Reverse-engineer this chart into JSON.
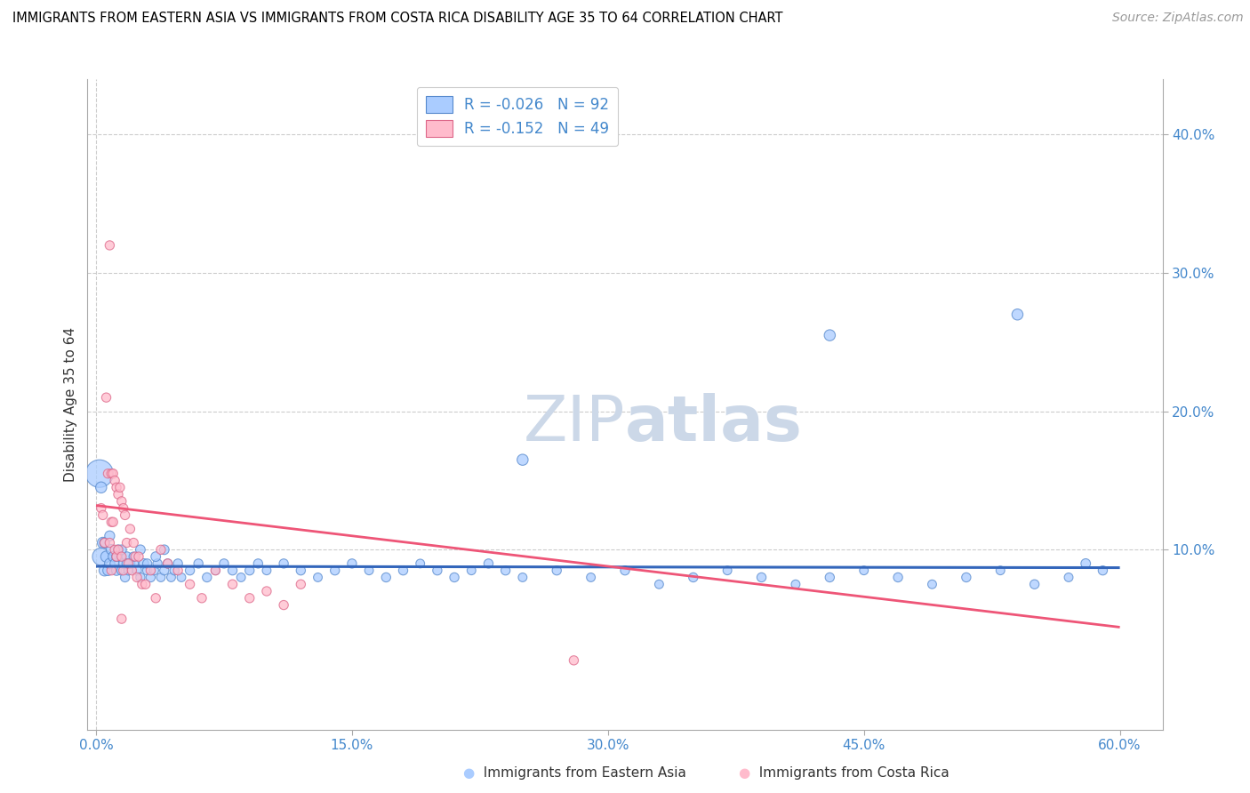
{
  "title": "IMMIGRANTS FROM EASTERN ASIA VS IMMIGRANTS FROM COSTA RICA DISABILITY AGE 35 TO 64 CORRELATION CHART",
  "source": "Source: ZipAtlas.com",
  "xlabel_blue": "Immigrants from Eastern Asia",
  "xlabel_pink": "Immigrants from Costa Rica",
  "ylabel": "Disability Age 35 to 64",
  "blue_R": -0.026,
  "blue_N": 92,
  "pink_R": -0.152,
  "pink_N": 49,
  "xlim": [
    -0.005,
    0.625
  ],
  "ylim": [
    -0.03,
    0.44
  ],
  "ytick_vals": [
    0.1,
    0.2,
    0.3,
    0.4
  ],
  "xtick_vals": [
    0.0,
    0.15,
    0.3,
    0.45,
    0.6
  ],
  "grid_color": "#cccccc",
  "blue_color": "#aaccff",
  "blue_edge_color": "#5588cc",
  "blue_line_color": "#3366bb",
  "pink_color": "#ffbbcc",
  "pink_edge_color": "#dd6688",
  "pink_line_color": "#ee5577",
  "tick_label_color": "#4488cc",
  "watermark_color": "#ccd8e8",
  "blue_line_y0": 0.088,
  "blue_line_y1": 0.087,
  "pink_line_y0": 0.132,
  "pink_line_y1": 0.044,
  "blue_scatter_x": [
    0.002,
    0.003,
    0.004,
    0.005,
    0.006,
    0.007,
    0.008,
    0.009,
    0.01,
    0.011,
    0.012,
    0.013,
    0.014,
    0.015,
    0.016,
    0.017,
    0.018,
    0.019,
    0.02,
    0.022,
    0.024,
    0.026,
    0.028,
    0.03,
    0.032,
    0.034,
    0.036,
    0.038,
    0.04,
    0.042,
    0.044,
    0.046,
    0.048,
    0.05,
    0.055,
    0.06,
    0.065,
    0.07,
    0.075,
    0.08,
    0.085,
    0.09,
    0.095,
    0.1,
    0.11,
    0.12,
    0.13,
    0.14,
    0.15,
    0.16,
    0.17,
    0.18,
    0.19,
    0.2,
    0.21,
    0.22,
    0.23,
    0.24,
    0.25,
    0.27,
    0.29,
    0.31,
    0.33,
    0.35,
    0.37,
    0.39,
    0.41,
    0.43,
    0.45,
    0.47,
    0.49,
    0.51,
    0.53,
    0.55,
    0.57,
    0.59,
    0.005,
    0.008,
    0.012,
    0.015,
    0.018,
    0.022,
    0.026,
    0.03,
    0.035,
    0.04,
    0.25,
    0.54,
    0.003,
    0.58,
    0.43
  ],
  "blue_scatter_y": [
    0.155,
    0.095,
    0.105,
    0.085,
    0.095,
    0.085,
    0.09,
    0.1,
    0.095,
    0.09,
    0.085,
    0.1,
    0.095,
    0.085,
    0.09,
    0.08,
    0.095,
    0.085,
    0.09,
    0.09,
    0.085,
    0.08,
    0.09,
    0.085,
    0.08,
    0.085,
    0.09,
    0.08,
    0.085,
    0.09,
    0.08,
    0.085,
    0.09,
    0.08,
    0.085,
    0.09,
    0.08,
    0.085,
    0.09,
    0.085,
    0.08,
    0.085,
    0.09,
    0.085,
    0.09,
    0.085,
    0.08,
    0.085,
    0.09,
    0.085,
    0.08,
    0.085,
    0.09,
    0.085,
    0.08,
    0.085,
    0.09,
    0.085,
    0.08,
    0.085,
    0.08,
    0.085,
    0.075,
    0.08,
    0.085,
    0.08,
    0.075,
    0.08,
    0.085,
    0.08,
    0.075,
    0.08,
    0.085,
    0.075,
    0.08,
    0.085,
    0.105,
    0.11,
    0.095,
    0.1,
    0.09,
    0.095,
    0.1,
    0.09,
    0.095,
    0.1,
    0.165,
    0.27,
    0.145,
    0.09,
    0.255
  ],
  "blue_scatter_size": [
    500,
    200,
    80,
    80,
    80,
    70,
    70,
    70,
    65,
    60,
    65,
    60,
    60,
    60,
    60,
    55,
    60,
    55,
    60,
    60,
    55,
    55,
    60,
    55,
    55,
    55,
    55,
    50,
    55,
    55,
    50,
    55,
    55,
    50,
    55,
    55,
    55,
    50,
    55,
    55,
    50,
    55,
    55,
    50,
    55,
    55,
    50,
    55,
    55,
    50,
    55,
    55,
    50,
    55,
    55,
    50,
    55,
    55,
    50,
    55,
    50,
    55,
    50,
    55,
    50,
    55,
    50,
    55,
    50,
    55,
    50,
    55,
    50,
    55,
    50,
    55,
    65,
    65,
    60,
    60,
    60,
    55,
    60,
    55,
    60,
    60,
    80,
    80,
    80,
    60,
    80
  ],
  "pink_scatter_x": [
    0.003,
    0.004,
    0.005,
    0.006,
    0.007,
    0.008,
    0.008,
    0.009,
    0.009,
    0.01,
    0.01,
    0.011,
    0.011,
    0.012,
    0.012,
    0.013,
    0.013,
    0.014,
    0.015,
    0.015,
    0.016,
    0.016,
    0.017,
    0.018,
    0.019,
    0.02,
    0.021,
    0.022,
    0.023,
    0.024,
    0.025,
    0.027,
    0.029,
    0.032,
    0.035,
    0.038,
    0.042,
    0.048,
    0.055,
    0.062,
    0.07,
    0.08,
    0.09,
    0.1,
    0.11,
    0.12,
    0.009,
    0.015,
    0.28
  ],
  "pink_scatter_y": [
    0.13,
    0.125,
    0.105,
    0.21,
    0.155,
    0.32,
    0.105,
    0.155,
    0.12,
    0.155,
    0.12,
    0.15,
    0.1,
    0.145,
    0.095,
    0.14,
    0.1,
    0.145,
    0.135,
    0.095,
    0.13,
    0.085,
    0.125,
    0.105,
    0.09,
    0.115,
    0.085,
    0.105,
    0.095,
    0.08,
    0.095,
    0.075,
    0.075,
    0.085,
    0.065,
    0.1,
    0.09,
    0.085,
    0.075,
    0.065,
    0.085,
    0.075,
    0.065,
    0.07,
    0.06,
    0.075,
    0.085,
    0.05,
    0.02
  ],
  "pink_scatter_size": [
    55,
    55,
    55,
    55,
    55,
    55,
    55,
    55,
    55,
    55,
    55,
    55,
    55,
    55,
    55,
    55,
    55,
    55,
    55,
    55,
    55,
    55,
    55,
    55,
    55,
    55,
    55,
    55,
    55,
    55,
    55,
    55,
    55,
    55,
    55,
    55,
    55,
    55,
    55,
    55,
    55,
    55,
    55,
    55,
    55,
    55,
    55,
    55,
    55
  ]
}
